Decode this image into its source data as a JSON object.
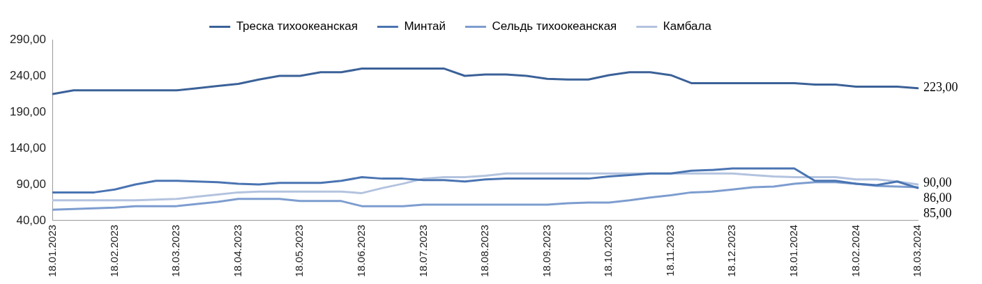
{
  "chart_data": {
    "type": "line",
    "categories": [
      "18.01.2023",
      null,
      null,
      "18.02.2023",
      null,
      null,
      "18.03.2023",
      null,
      null,
      "18.04.2023",
      null,
      null,
      "18.05.2023",
      null,
      null,
      "18.06.2023",
      null,
      null,
      "18.07.2023",
      null,
      null,
      "18.08.2023",
      null,
      null,
      "18.09.2023",
      null,
      null,
      "18.10.2023",
      null,
      null,
      "18.11.2023",
      null,
      null,
      "18.12.2023",
      null,
      null,
      "18.01.2024",
      null,
      null,
      "18.02.2024",
      null,
      null,
      "18.03.2024"
    ],
    "series": [
      {
        "name": "Треска тихоокеанская",
        "color": "#3b6198",
        "values": [
          215,
          220,
          220,
          220,
          220,
          220,
          220,
          223,
          226,
          229,
          235,
          240,
          240,
          245,
          245,
          250,
          250,
          250,
          250,
          250,
          240,
          242,
          242,
          240,
          236,
          235,
          235,
          241,
          245,
          245,
          241,
          230,
          230,
          230,
          230,
          230,
          230,
          228,
          228,
          225,
          225,
          225,
          223
        ],
        "value_labels": [
          null,
          null,
          null,
          null,
          null,
          null,
          null,
          null,
          null,
          null,
          null,
          null,
          null,
          null,
          null,
          null,
          null,
          null,
          null,
          null,
          null,
          null,
          null,
          null,
          null,
          null,
          null,
          null,
          null,
          null,
          null,
          null,
          null,
          null,
          null,
          null,
          null,
          null,
          null,
          null,
          null,
          null,
          "223,00"
        ]
      },
      {
        "name": "Минтай",
        "color": "#4a74b2",
        "values": [
          79,
          79,
          79,
          83,
          90,
          95,
          95,
          94,
          93,
          91,
          90,
          92,
          92,
          92,
          95,
          100,
          98,
          98,
          96,
          96,
          94,
          97,
          98,
          98,
          98,
          98,
          98,
          101,
          103,
          105,
          105,
          109,
          110,
          112,
          112,
          112,
          112,
          95,
          95,
          91,
          89,
          94,
          85
        ],
        "value_labels": [
          null,
          null,
          null,
          null,
          null,
          null,
          null,
          null,
          null,
          null,
          null,
          null,
          null,
          null,
          null,
          null,
          null,
          null,
          null,
          null,
          null,
          null,
          null,
          null,
          null,
          null,
          null,
          null,
          null,
          null,
          null,
          null,
          null,
          null,
          null,
          null,
          null,
          null,
          null,
          null,
          null,
          null,
          "85,00"
        ]
      },
      {
        "name": "Сельдь тихоокеанская",
        "color": "#7d9dcf",
        "values": [
          55,
          56,
          57,
          58,
          60,
          60,
          60,
          63,
          66,
          70,
          70,
          70,
          67,
          67,
          67,
          60,
          60,
          60,
          62,
          62,
          62,
          62,
          62,
          62,
          62,
          64,
          65,
          65,
          68,
          72,
          75,
          79,
          80,
          83,
          86,
          87,
          91,
          93,
          93,
          91,
          88,
          87,
          86
        ],
        "value_labels": [
          null,
          null,
          null,
          null,
          null,
          null,
          null,
          null,
          null,
          null,
          null,
          null,
          null,
          null,
          null,
          null,
          null,
          null,
          null,
          null,
          null,
          null,
          null,
          null,
          null,
          null,
          null,
          null,
          null,
          null,
          null,
          null,
          null,
          null,
          null,
          null,
          null,
          null,
          null,
          null,
          null,
          null,
          "86,00"
        ]
      },
      {
        "name": "Камбала",
        "color": "#b3c3df",
        "values": [
          68,
          68,
          68,
          68,
          68,
          69,
          70,
          73,
          76,
          79,
          80,
          80,
          80,
          80,
          80,
          78,
          85,
          91,
          98,
          100,
          100,
          102,
          105,
          105,
          105,
          105,
          105,
          105,
          105,
          105,
          105,
          105,
          105,
          105,
          103,
          101,
          100,
          100,
          100,
          97,
          97,
          94,
          90
        ],
        "value_labels": [
          null,
          null,
          null,
          null,
          null,
          null,
          null,
          null,
          null,
          null,
          null,
          null,
          null,
          null,
          null,
          null,
          null,
          null,
          null,
          null,
          null,
          null,
          null,
          null,
          null,
          null,
          null,
          null,
          null,
          null,
          null,
          null,
          null,
          null,
          null,
          null,
          null,
          null,
          null,
          null,
          null,
          null,
          "90,00"
        ]
      }
    ],
    "ylim": [
      40,
      290
    ],
    "yticks": [
      {
        "value": 40,
        "label": "40,00"
      },
      {
        "value": 90,
        "label": "90,00"
      },
      {
        "value": 140,
        "label": "140,00"
      },
      {
        "value": 190,
        "label": "190,00"
      },
      {
        "value": 240,
        "label": "240,00"
      },
      {
        "value": 290,
        "label": "290,00"
      }
    ],
    "grid": false,
    "legend": "top",
    "marker": "none",
    "line_style": "solid"
  }
}
